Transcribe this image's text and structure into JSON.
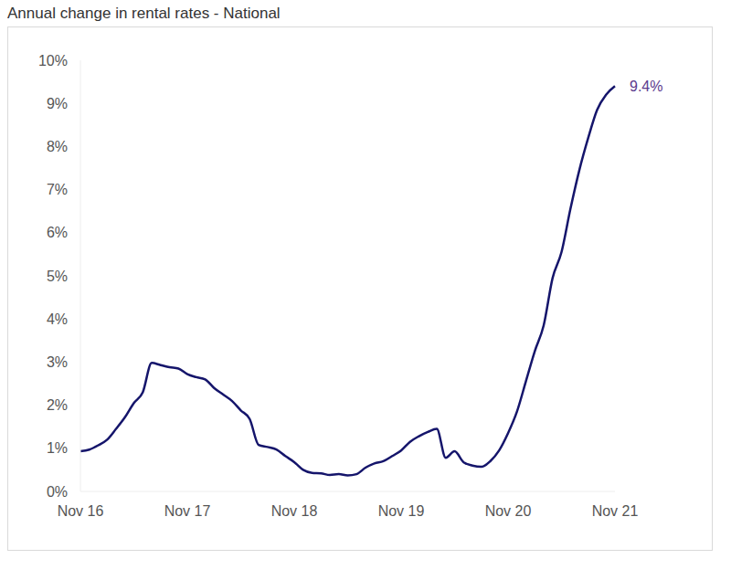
{
  "chart_data": {
    "type": "line",
    "title": "Annual change in rental rates - National",
    "categories": [
      "Nov 16",
      null,
      null,
      null,
      null,
      null,
      null,
      null,
      null,
      null,
      null,
      null,
      "Nov 17",
      null,
      null,
      null,
      null,
      null,
      null,
      null,
      null,
      null,
      null,
      null,
      "Nov 18",
      null,
      null,
      null,
      null,
      null,
      null,
      null,
      null,
      null,
      null,
      null,
      "Nov 19",
      null,
      null,
      null,
      null,
      null,
      null,
      null,
      null,
      null,
      null,
      null,
      "Nov 20",
      null,
      null,
      null,
      null,
      null,
      null,
      null,
      null,
      null,
      null,
      null,
      "Nov 21"
    ],
    "values": [
      0.93,
      0.97,
      1.07,
      1.2,
      1.45,
      1.72,
      2.05,
      2.3,
      2.98,
      2.93,
      2.88,
      2.85,
      2.72,
      2.65,
      2.6,
      2.4,
      2.25,
      2.1,
      1.88,
      1.68,
      1.08,
      1.03,
      0.97,
      0.82,
      0.68,
      0.5,
      0.43,
      0.42,
      0.38,
      0.4,
      0.37,
      0.4,
      0.55,
      0.65,
      0.7,
      0.82,
      0.95,
      1.15,
      1.28,
      1.38,
      1.45,
      0.78,
      0.93,
      0.68,
      0.6,
      0.57,
      0.7,
      0.95,
      1.35,
      1.85,
      2.55,
      3.25,
      3.85,
      4.95,
      5.55,
      6.55,
      7.45,
      8.2,
      8.85,
      9.2,
      9.4
    ],
    "color": "#15156b",
    "ylim": [
      0,
      10
    ],
    "yticks": [
      {
        "value": 0,
        "label": "0%"
      },
      {
        "value": 1,
        "label": "1%"
      },
      {
        "value": 2,
        "label": "2%"
      },
      {
        "value": 3,
        "label": "3%"
      },
      {
        "value": 4,
        "label": "4%"
      },
      {
        "value": 5,
        "label": "5%"
      },
      {
        "value": 6,
        "label": "6%"
      },
      {
        "value": 7,
        "label": "7%"
      },
      {
        "value": 8,
        "label": "8%"
      },
      {
        "value": 9,
        "label": "9%"
      },
      {
        "value": 10,
        "label": "10%"
      }
    ],
    "grid": false,
    "annotations": [
      {
        "x": "Nov 21",
        "y": 9.4,
        "text": "9.4%",
        "color": "#5b3a8e"
      }
    ]
  }
}
